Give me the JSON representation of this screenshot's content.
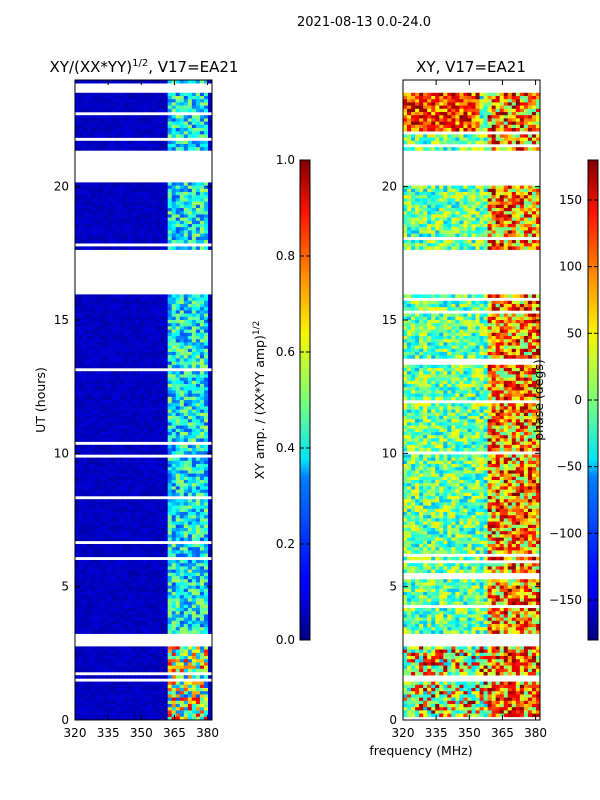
{
  "chart_data": {
    "type": "heatmap",
    "suptitle": "2021-08-13 0.0-24.0",
    "xlabel": "frequency (MHz)",
    "ylabel": "UT (hours)",
    "xlim": [
      320,
      382
    ],
    "ylim": [
      0,
      24
    ],
    "xticks": [
      320,
      335,
      350,
      365,
      380
    ],
    "yticks": [
      0,
      5,
      10,
      15,
      20
    ],
    "gaps_hours": [
      [
        2.75,
        3.25
      ],
      [
        15.95,
        17.6
      ],
      [
        20.15,
        21.4
      ],
      [
        23.5,
        23.9
      ]
    ],
    "panels": [
      {
        "title_prefix": "XY/(XX*YY)",
        "title_superscript": "1/2",
        "title_suffix": ", V17=EA21",
        "colormap": "jet",
        "colorbar_label": "XY amp. / (XX*YY amp)^1/2",
        "colorbar_range": [
          0.0,
          1.0
        ],
        "colorbar_ticks": [
          "0.0",
          "0.2",
          "0.4",
          "0.6",
          "0.8",
          "1.0"
        ],
        "colorbar_tick_values": [
          0.0,
          0.2,
          0.4,
          0.6,
          0.8,
          1.0
        ]
      },
      {
        "title": "XY, V17=EA21",
        "colormap": "jet",
        "colorbar_label": "phase (degs)",
        "colorbar_range": [
          -180,
          180
        ],
        "colorbar_ticks": [
          "150",
          "100",
          "50",
          "0",
          "−50",
          "−100",
          "−150"
        ],
        "colorbar_tick_values": [
          150,
          100,
          50,
          0,
          -50,
          -100,
          -150
        ]
      }
    ]
  }
}
